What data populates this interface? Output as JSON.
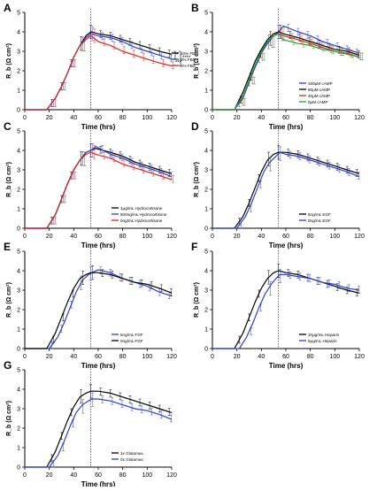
{
  "chart_data": [
    {
      "type": "line",
      "panel_label": "A",
      "xlabel": "Time (hrs)",
      "ylabel": "R_b (Ω cm²)",
      "xlim": [
        0,
        120
      ],
      "ylim": [
        0,
        5
      ],
      "xticks": [
        0,
        20,
        40,
        60,
        80,
        100,
        120
      ],
      "yticks": [
        0,
        1,
        2,
        3,
        4,
        5
      ],
      "marker_x": 54,
      "legend_position": "right",
      "annotations": [
        "*",
        "****",
        "***"
      ],
      "series": [
        {
          "name": "10% FBS",
          "color": "#000000",
          "x": [
            0,
            18,
            25,
            30,
            35,
            40,
            45,
            50,
            54,
            60,
            70,
            80,
            90,
            100,
            110,
            120
          ],
          "y": [
            0,
            0,
            0.6,
            1.2,
            1.9,
            2.7,
            3.3,
            3.8,
            4.0,
            3.9,
            3.8,
            3.6,
            3.4,
            3.2,
            3.0,
            2.85
          ]
        },
        {
          "name": "5% FBS",
          "color": "#2b3fd6",
          "x": [
            0,
            18,
            25,
            30,
            35,
            40,
            45,
            50,
            54,
            60,
            70,
            80,
            90,
            100,
            110,
            120
          ],
          "y": [
            0,
            0,
            0.6,
            1.2,
            1.9,
            2.7,
            3.3,
            3.7,
            3.9,
            3.8,
            3.7,
            3.5,
            3.2,
            3.0,
            2.8,
            2.6
          ]
        },
        {
          "name": "2% FBS",
          "color": "#e0231f",
          "x": [
            0,
            18,
            25,
            30,
            35,
            40,
            45,
            50,
            54,
            60,
            70,
            80,
            90,
            100,
            110,
            120
          ],
          "y": [
            0,
            0,
            0.6,
            1.2,
            1.9,
            2.7,
            3.3,
            3.6,
            3.8,
            3.5,
            3.3,
            3.0,
            2.8,
            2.6,
            2.4,
            2.25
          ]
        }
      ]
    },
    {
      "type": "line",
      "panel_label": "B",
      "xlabel": "Time (hrs)",
      "ylabel": "R_b (Ω cm²)",
      "xlim": [
        0,
        120
      ],
      "ylim": [
        0,
        5
      ],
      "xticks": [
        0,
        20,
        40,
        60,
        80,
        100,
        120
      ],
      "yticks": [
        0,
        1,
        2,
        3,
        4,
        5
      ],
      "marker_x": 54,
      "legend_position": "bottom-right",
      "series": [
        {
          "name": "160μM cAMP",
          "color": "#2b3fd6",
          "x": [
            0,
            18,
            25,
            30,
            35,
            40,
            45,
            50,
            54,
            58,
            70,
            80,
            90,
            100,
            110,
            120
          ],
          "y": [
            0,
            0,
            0.6,
            1.4,
            2.2,
            2.9,
            3.4,
            3.8,
            4.0,
            4.3,
            4.0,
            3.8,
            3.5,
            3.3,
            3.1,
            2.9
          ]
        },
        {
          "name": "80μM cAMP",
          "color": "#000000",
          "x": [
            0,
            18,
            25,
            30,
            35,
            40,
            45,
            50,
            54,
            58,
            70,
            80,
            90,
            100,
            110,
            120
          ],
          "y": [
            0,
            0,
            0.9,
            1.7,
            2.5,
            3.1,
            3.6,
            3.9,
            4.0,
            3.9,
            3.7,
            3.5,
            3.3,
            3.1,
            3.0,
            2.8
          ]
        },
        {
          "name": "40μM cAMP",
          "color": "#e0231f",
          "x": [
            0,
            18,
            25,
            30,
            35,
            40,
            45,
            50,
            54,
            58,
            70,
            80,
            90,
            100,
            110,
            120
          ],
          "y": [
            0,
            0,
            0.7,
            1.5,
            2.3,
            3.0,
            3.5,
            3.8,
            3.9,
            3.8,
            3.6,
            3.4,
            3.2,
            3.0,
            2.9,
            2.7
          ]
        },
        {
          "name": "0μM cAMP",
          "color": "#23a23a",
          "x": [
            0,
            18,
            25,
            30,
            35,
            40,
            45,
            50,
            54,
            58,
            70,
            80,
            90,
            100,
            110,
            120
          ],
          "y": [
            0,
            0,
            0.7,
            1.5,
            2.3,
            3.0,
            3.5,
            3.8,
            3.9,
            3.6,
            3.4,
            3.3,
            3.1,
            3.0,
            2.85,
            2.7
          ]
        }
      ]
    },
    {
      "type": "line",
      "panel_label": "C",
      "xlabel": "Time (hrs)",
      "ylabel": "R_b (Ω cm²)",
      "xlim": [
        0,
        120
      ],
      "ylim": [
        0,
        5
      ],
      "xticks": [
        0,
        20,
        40,
        60,
        80,
        100,
        120
      ],
      "yticks": [
        0,
        1,
        2,
        3,
        4,
        5
      ],
      "marker_x": 54,
      "legend_position": "bottom-right",
      "series": [
        {
          "name": "1μg/mL Hydrocortisone",
          "color": "#000000",
          "x": [
            0,
            18,
            25,
            30,
            35,
            40,
            45,
            50,
            54,
            58,
            70,
            80,
            90,
            100,
            110,
            120
          ],
          "y": [
            0,
            0,
            0.7,
            1.5,
            2.3,
            3.0,
            3.5,
            3.9,
            4.0,
            4.1,
            3.9,
            3.7,
            3.4,
            3.2,
            3.0,
            2.8
          ]
        },
        {
          "name": "500ng/mL Hydrocortisone",
          "color": "#2b3fd6",
          "x": [
            0,
            18,
            25,
            30,
            35,
            40,
            45,
            50,
            54,
            58,
            70,
            80,
            90,
            100,
            110,
            120
          ],
          "y": [
            0,
            0,
            0.7,
            1.5,
            2.3,
            3.0,
            3.5,
            3.9,
            4.0,
            4.2,
            3.8,
            3.6,
            3.3,
            3.1,
            2.9,
            2.65
          ]
        },
        {
          "name": "0ng/mL Hydrocortisone",
          "color": "#e0231f",
          "x": [
            0,
            18,
            25,
            30,
            35,
            40,
            45,
            50,
            54,
            58,
            70,
            80,
            90,
            100,
            110,
            120
          ],
          "y": [
            0,
            0,
            0.7,
            1.5,
            2.3,
            3.0,
            3.5,
            3.8,
            3.9,
            3.8,
            3.6,
            3.3,
            3.1,
            2.9,
            2.7,
            2.5
          ]
        }
      ]
    },
    {
      "type": "line",
      "panel_label": "D",
      "xlabel": "Time (hrs)",
      "ylabel": "R_b (Ω cm²)",
      "xlim": [
        0,
        120
      ],
      "ylim": [
        0,
        5
      ],
      "xticks": [
        0,
        20,
        40,
        60,
        80,
        100,
        120
      ],
      "yticks": [
        0,
        1,
        2,
        3,
        4,
        5
      ],
      "marker_x": 54,
      "legend_position": "bottom-right",
      "series": [
        {
          "name": "5ng/mL EGF",
          "color": "#000000",
          "x": [
            0,
            18,
            25,
            30,
            35,
            40,
            45,
            50,
            54,
            60,
            70,
            80,
            90,
            100,
            110,
            120
          ],
          "y": [
            0,
            0,
            0.6,
            1.3,
            2.1,
            2.9,
            3.5,
            3.8,
            3.9,
            3.9,
            3.8,
            3.6,
            3.4,
            3.2,
            3.0,
            2.8
          ]
        },
        {
          "name": "0ng/mL EGF",
          "color": "#2b3fd6",
          "x": [
            0,
            20,
            27,
            32,
            37,
            42,
            47,
            52,
            55,
            60,
            70,
            80,
            90,
            100,
            110,
            120
          ],
          "y": [
            0,
            0,
            0.6,
            1.3,
            2.1,
            2.9,
            3.4,
            3.7,
            3.9,
            3.8,
            3.7,
            3.5,
            3.3,
            3.1,
            2.9,
            2.65
          ]
        }
      ]
    },
    {
      "type": "line",
      "panel_label": "E",
      "xlabel": "Time (hrs)",
      "ylabel": "R_b (Ω cm²)",
      "xlim": [
        0,
        120
      ],
      "ylim": [
        0,
        5
      ],
      "xticks": [
        0,
        20,
        40,
        60,
        80,
        100,
        120
      ],
      "yticks": [
        0,
        1,
        2,
        3,
        4,
        5
      ],
      "marker_x": 54,
      "legend_position": "bottom-right",
      "series": [
        {
          "name": "5ng/mL FGF",
          "color": "#2b3fd6",
          "x": [
            0,
            20,
            27,
            32,
            37,
            42,
            47,
            52,
            55,
            60,
            70,
            80,
            90,
            100,
            110,
            120
          ],
          "y": [
            0,
            0,
            0.6,
            1.3,
            2.1,
            2.9,
            3.5,
            3.8,
            3.9,
            4.05,
            3.9,
            3.6,
            3.4,
            3.2,
            2.9,
            2.7
          ]
        },
        {
          "name": "0ng/mL FGF",
          "color": "#000000",
          "x": [
            0,
            18,
            25,
            30,
            35,
            40,
            45,
            50,
            54,
            60,
            70,
            80,
            90,
            100,
            110,
            120
          ],
          "y": [
            0,
            0,
            0.8,
            1.6,
            2.4,
            3.1,
            3.6,
            3.8,
            3.9,
            3.9,
            3.8,
            3.6,
            3.4,
            3.3,
            3.1,
            2.85
          ]
        }
      ]
    },
    {
      "type": "line",
      "panel_label": "F",
      "xlabel": "Time (hrs)",
      "ylabel": "R_b (Ω cm²)",
      "xlim": [
        0,
        120
      ],
      "ylim": [
        0,
        5
      ],
      "xticks": [
        0,
        20,
        40,
        60,
        80,
        100,
        120
      ],
      "yticks": [
        0,
        1,
        2,
        3,
        4,
        5
      ],
      "marker_x": 54,
      "legend_position": "bottom-right",
      "series": [
        {
          "name": "10μg/mL Heparin",
          "color": "#000000",
          "x": [
            0,
            18,
            25,
            30,
            35,
            40,
            45,
            50,
            54,
            60,
            70,
            80,
            90,
            100,
            110,
            120
          ],
          "y": [
            0,
            0,
            0.8,
            1.6,
            2.4,
            3.1,
            3.6,
            3.9,
            4.0,
            3.9,
            3.8,
            3.6,
            3.4,
            3.2,
            3.0,
            2.85
          ]
        },
        {
          "name": "5μg/mL Heparin",
          "color": "#2b3fd6",
          "x": [
            0,
            22,
            28,
            33,
            38,
            43,
            48,
            52,
            55,
            60,
            70,
            80,
            90,
            100,
            110,
            120
          ],
          "y": [
            0,
            0,
            0.6,
            1.3,
            2.1,
            2.8,
            3.3,
            3.6,
            3.8,
            3.8,
            3.7,
            3.6,
            3.4,
            3.3,
            3.1,
            3.0
          ]
        }
      ]
    },
    {
      "type": "line",
      "panel_label": "G",
      "xlabel": "Time (hrs)",
      "ylabel": "R_b (Ω cm²)",
      "xlim": [
        0,
        120
      ],
      "ylim": [
        0,
        5
      ],
      "xticks": [
        0,
        20,
        40,
        60,
        80,
        100,
        120
      ],
      "yticks": [
        0,
        1,
        2,
        3,
        4,
        5
      ],
      "marker_x": 54,
      "legend_position": "bottom-right",
      "series": [
        {
          "name": "1x Glutamax",
          "color": "#000000",
          "x": [
            0,
            18,
            25,
            30,
            35,
            40,
            45,
            50,
            54,
            60,
            70,
            80,
            90,
            100,
            110,
            120
          ],
          "y": [
            0,
            0,
            0.8,
            1.6,
            2.4,
            3.1,
            3.6,
            3.8,
            3.9,
            3.9,
            3.8,
            3.6,
            3.4,
            3.2,
            3.0,
            2.8
          ]
        },
        {
          "name": "0x Glutamax",
          "color": "#2b3fd6",
          "x": [
            0,
            20,
            27,
            32,
            37,
            42,
            47,
            52,
            55,
            60,
            70,
            80,
            90,
            100,
            110,
            120
          ],
          "y": [
            0,
            0,
            0.6,
            1.3,
            2.1,
            2.8,
            3.2,
            3.4,
            3.5,
            3.5,
            3.4,
            3.2,
            3.0,
            2.9,
            2.7,
            2.45
          ]
        }
      ]
    }
  ]
}
